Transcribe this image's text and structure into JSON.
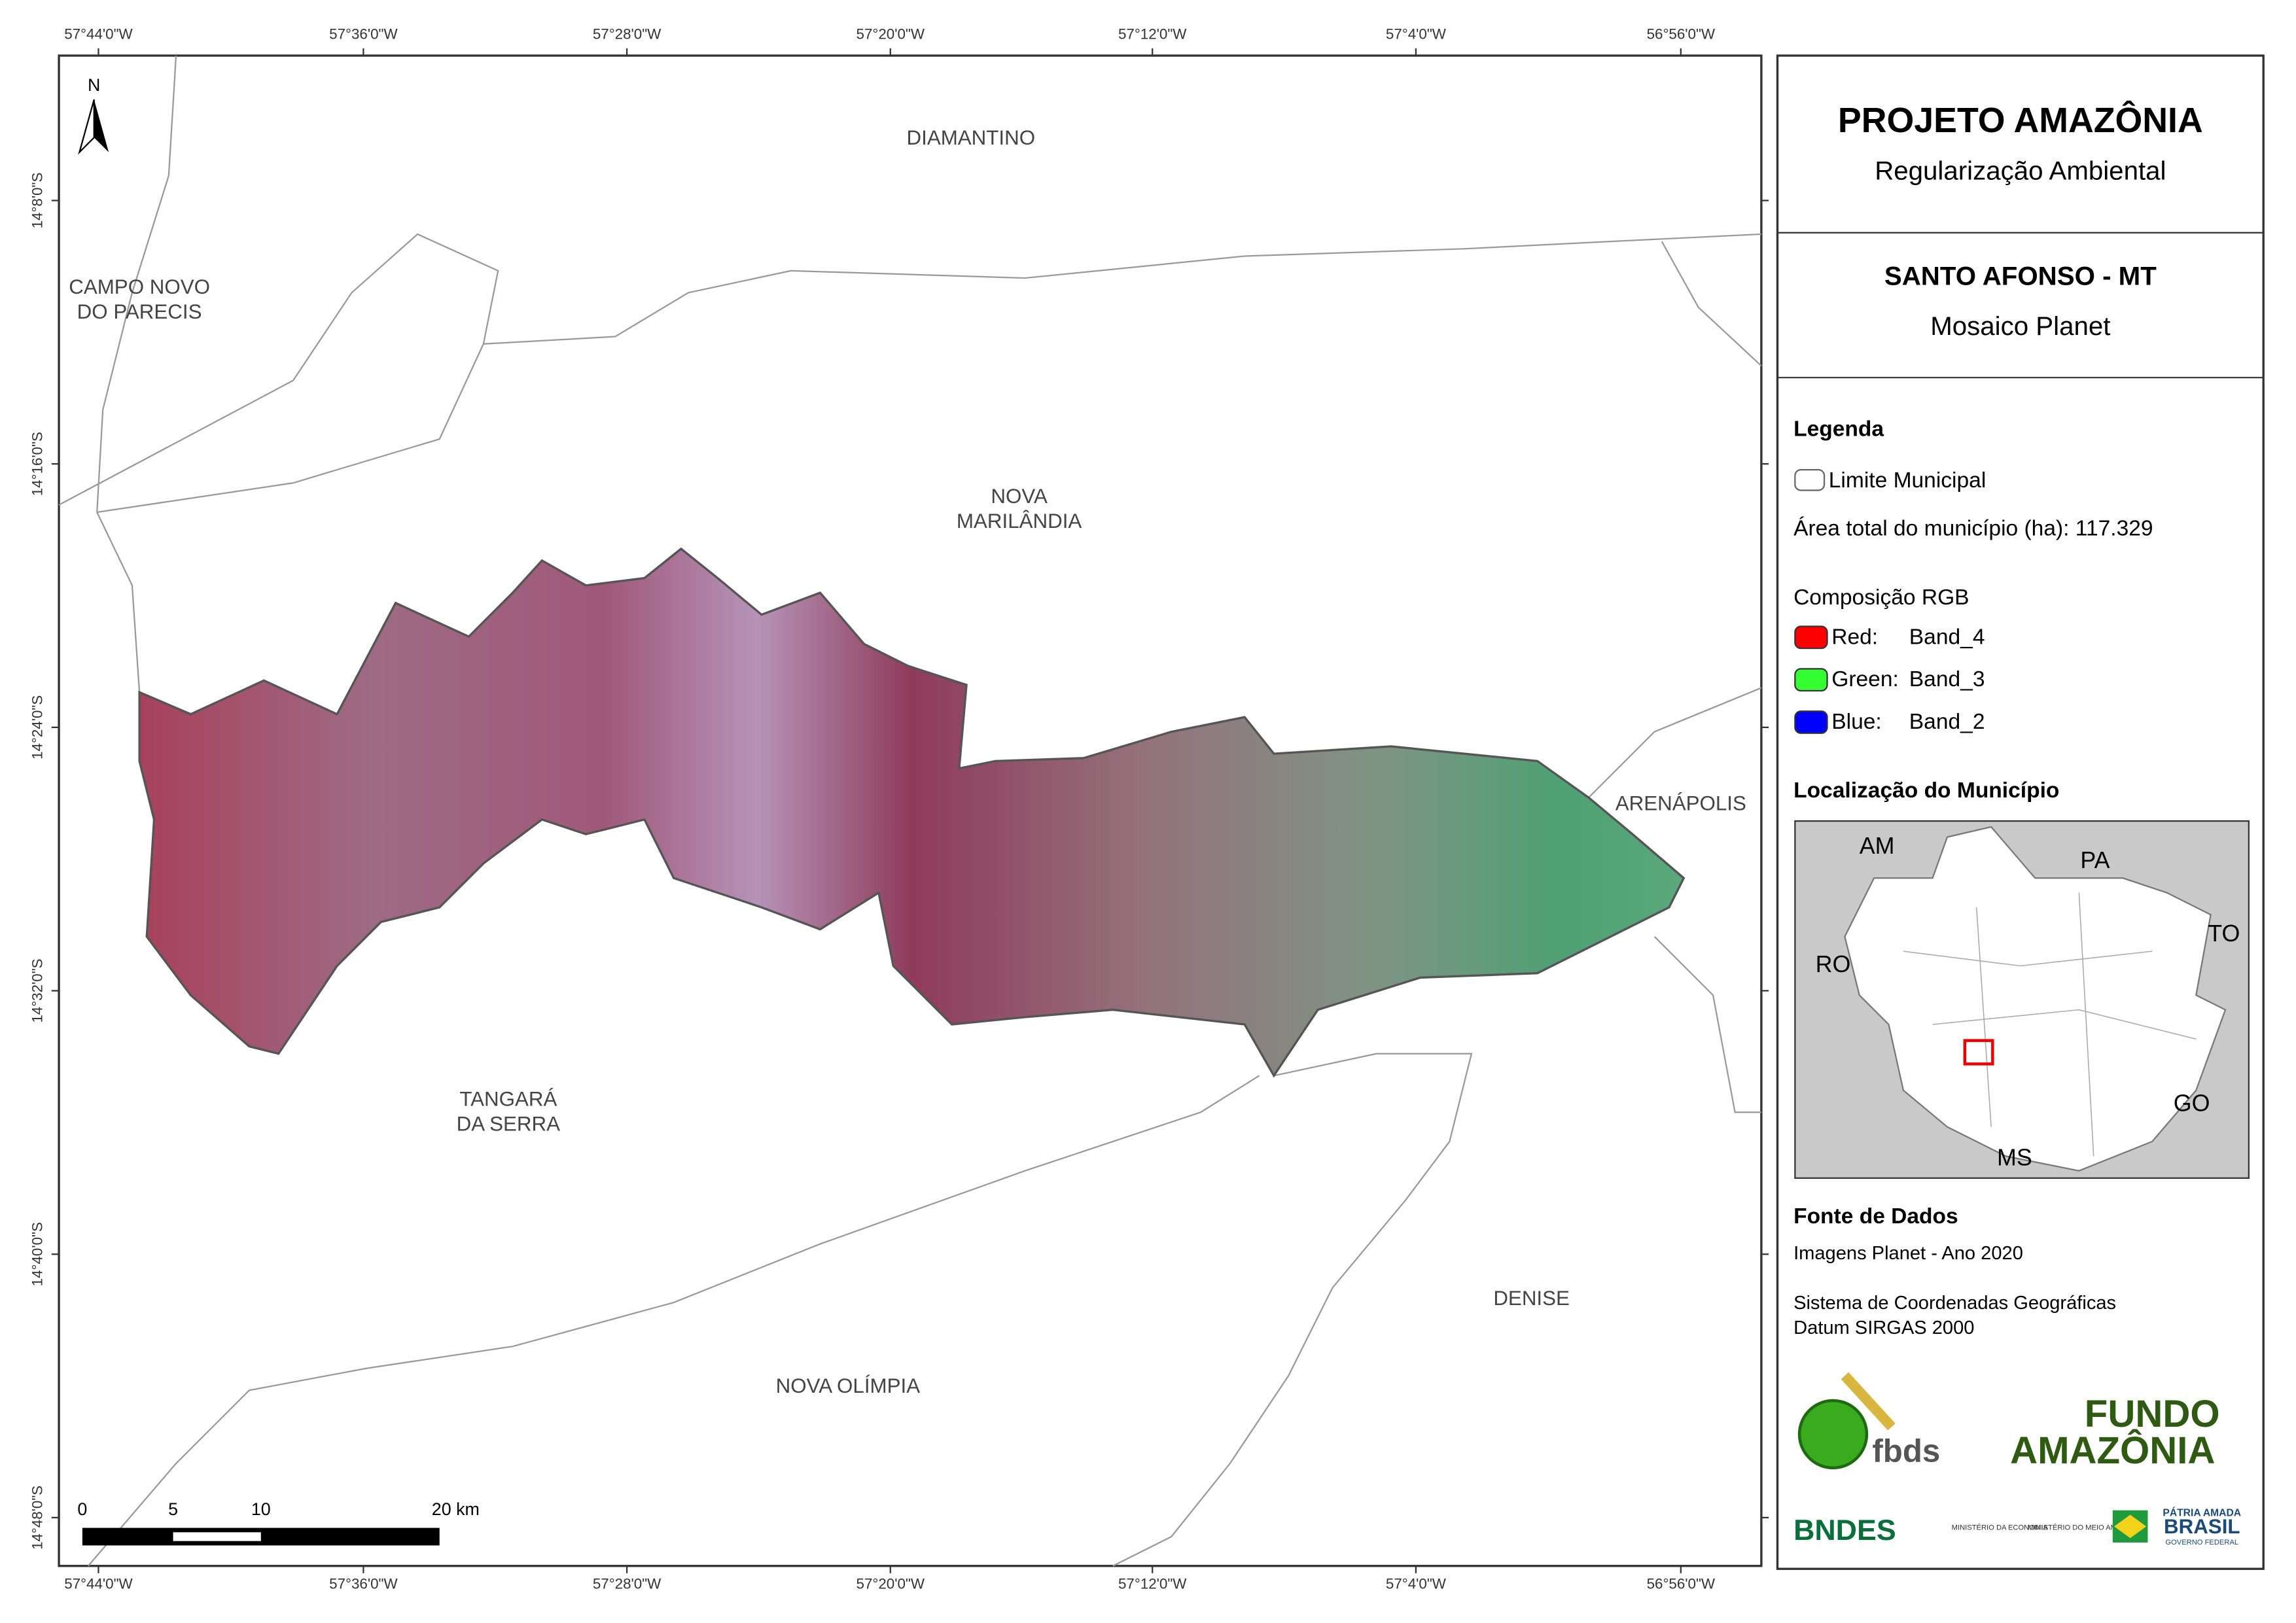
{
  "map": {
    "top_coords": [
      "57°44'0\"W",
      "57°36'0\"W",
      "57°28'0\"W",
      "57°20'0\"W",
      "57°12'0\"W",
      "57°4'0\"W",
      "56°56'0\"W"
    ],
    "left_coords": [
      "14°8'0\"S",
      "14°16'0\"S",
      "14°24'0\"S",
      "14°32'0\"S",
      "14°40'0\"S",
      "14°48'0\"S"
    ],
    "north": "N",
    "places": [
      {
        "lines": [
          "DIAMANTINO"
        ]
      },
      {
        "lines": [
          "CAMPO NOVO",
          "DO PARECIS"
        ]
      },
      {
        "lines": [
          "NOVA",
          "MARILÂNDIA"
        ]
      },
      {
        "lines": [
          "ARENÁPOLIS"
        ]
      },
      {
        "lines": [
          "TANGARÁ",
          "DA SERRA"
        ]
      },
      {
        "lines": [
          "DENISE"
        ]
      },
      {
        "lines": [
          "NOVA OLÍMPIA"
        ]
      }
    ],
    "scale_labels": [
      "0",
      "5",
      "10",
      "20 km"
    ]
  },
  "panel": {
    "title": "PROJETO AMAZÔNIA",
    "subtitle": "Regularização Ambiental",
    "municipality": "SANTO AFONSO - MT",
    "mosaic": "Mosaico Planet",
    "legend_title": "Legenda",
    "limit_label": "Limite Municipal",
    "area_label": "Área total do município (ha): 117.329",
    "rgb_title": "Composição RGB",
    "bands": [
      {
        "channel": "Red:",
        "band": "Band_4",
        "color": "#ff0000"
      },
      {
        "channel": "Green:",
        "band": "Band_3",
        "color": "#33ff33"
      },
      {
        "channel": "Blue:",
        "band": "Band_2",
        "color": "#0000ff"
      }
    ],
    "location_title": "Localização do Município",
    "states": [
      "AM",
      "PA",
      "RO",
      "TO",
      "GO",
      "MS"
    ],
    "source_title": "Fonte de Dados",
    "source_lines": [
      "Imagens Planet - Ano 2020",
      "Sistema de Coordenadas Geográficas",
      "Datum SIRGAS 2000"
    ],
    "logos": {
      "fbds": "fbds",
      "fundo1": "FUNDO",
      "fundo2": "AMAZÔNIA",
      "bndes": "BNDES",
      "min1": "MINISTÉRIO DA ECONOMIA",
      "min2": "MINISTÉRIO DO MEIO AMBIENTE",
      "patria": "PÁTRIA AMADA",
      "brasil": "BRASIL",
      "gov": "GOVERNO FEDERAL"
    }
  }
}
